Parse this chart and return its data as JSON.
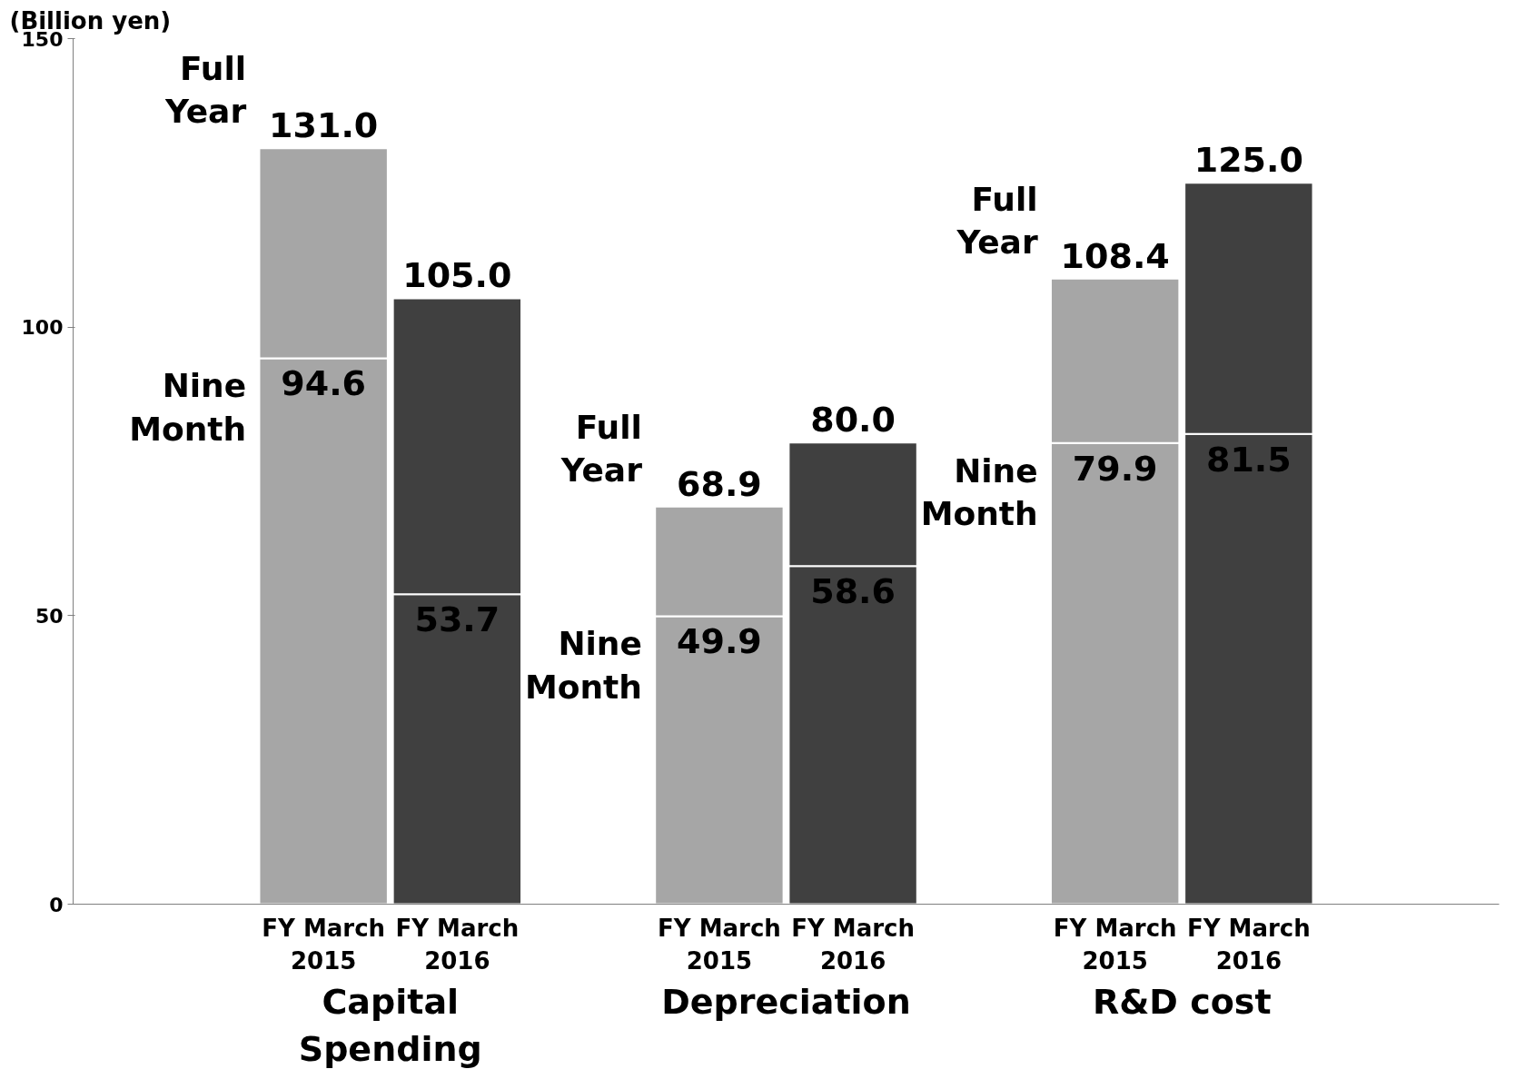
{
  "chart_data": {
    "type": "bar",
    "ylabel": "(Billion yen)",
    "stacked": true,
    "categories": [
      "FY March 2015",
      "FY March 2016",
      "FY March 2015",
      "FY March 2016",
      "FY March 2015",
      "FY March 2016"
    ],
    "annotations": [
      "Capital Spending",
      "Depreciation",
      "R&D cost"
    ],
    "series": [
      {
        "name": "Nine Month",
        "colors": [
          "#a6a6a6",
          "#404040",
          "#a6a6a6",
          "#404040",
          "#a6a6a6",
          "#404040"
        ],
        "values": [
          94.6,
          53.7,
          49.9,
          58.6,
          79.9,
          81.5
        ],
        "value_labels": [
          "94.6",
          "53.7",
          "49.9",
          "58.6",
          "79.9",
          "81.5"
        ]
      },
      {
        "name": "Full Year",
        "colors": [
          "#a6a6a6",
          "#404040",
          "#a6a6a6",
          "#404040",
          "#a6a6a6",
          "#404040"
        ],
        "values": [
          36.4,
          51.3,
          19.0,
          21.4,
          28.5,
          43.5
        ]
      }
    ],
    "totals": [
      "131.0",
      "105.0",
      "68.9",
      "80.0",
      "108.4",
      "125.0"
    ],
    "ylim": [
      0,
      150
    ],
    "yticks": [
      0,
      50,
      100,
      150
    ],
    "grid": false
  }
}
